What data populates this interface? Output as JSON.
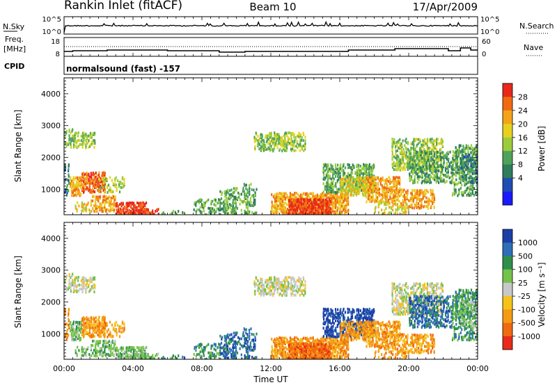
{
  "chart_data": {
    "type": "heatmap",
    "header": {
      "station": "Rankin Inlet (fitACF)",
      "beam": "Beam 10",
      "date": "17/Apr/2009"
    },
    "noise_panel": {
      "left_label": "N.Sky",
      "left_ticks": [
        "10^5",
        "10^0"
      ],
      "right_label": "N.Search",
      "right_ticks": [
        "10^5",
        "10^0"
      ]
    },
    "freq_panel": {
      "left_label_1": "Freq.",
      "left_label_2": "[MHz]",
      "left_ticks": [
        "18",
        "8"
      ],
      "right_label": "Nave",
      "right_ticks": [
        "60",
        "0"
      ]
    },
    "cpid": {
      "label": "CPID",
      "value": "normalsound (fast) -157"
    },
    "x": {
      "label": "Time UT",
      "ticks": [
        "00:00",
        "04:00",
        "08:00",
        "12:00",
        "16:00",
        "20:00",
        "00:00"
      ],
      "range_hours": [
        0,
        24
      ]
    },
    "y": {
      "label": "Slant Range [km]",
      "ticks": [
        "1000",
        "2000",
        "3000",
        "4000"
      ],
      "range_km": [
        200,
        4500
      ]
    },
    "power_panel": {
      "colorbar_label": "Power [dB]",
      "colorbar_ticks": [
        "4",
        "8",
        "12",
        "16",
        "20",
        "24",
        "28"
      ],
      "colors": [
        "#1a1aff",
        "#1f4db3",
        "#2f7d5a",
        "#4ea35a",
        "#9dcc3a",
        "#e6d21e",
        "#f5a319",
        "#f06a14",
        "#e8281a"
      ]
    },
    "velocity_panel": {
      "colorbar_label": "Velocity [m s⁻¹]",
      "colorbar_ticks": [
        "1000",
        "500",
        "100",
        "25",
        "-25",
        "-100",
        "-500",
        "-1000"
      ],
      "colors": [
        "#1b3fa6",
        "#2c6fb8",
        "#2e8f4a",
        "#74c24a",
        "#c8c8c8",
        "#f5c21a",
        "#f59a12",
        "#f06a10",
        "#e82a1a"
      ]
    }
  }
}
